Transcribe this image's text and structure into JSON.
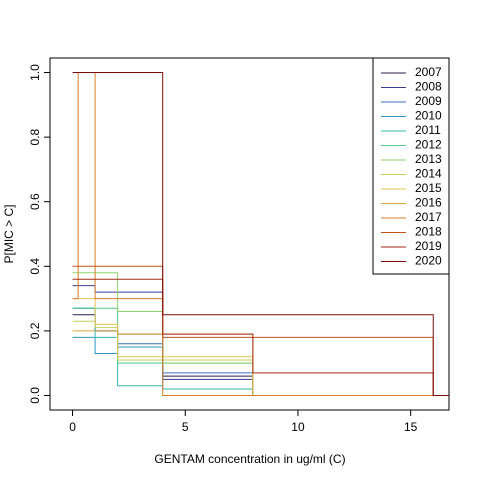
{
  "chart_data": {
    "type": "step",
    "x_label": "GENTAM concentration in ug/ml (C)",
    "y_label": "P[MIC > C]",
    "x": [
      0,
      0.25,
      1,
      2,
      4,
      8,
      16
    ],
    "xlim": [
      -1,
      16.7
    ],
    "xticks": [
      0,
      5,
      10,
      15
    ],
    "ylim": [
      -0.045,
      1.045
    ],
    "yticks": [
      {
        "value": 0,
        "label": "0.0"
      },
      {
        "value": 0.2,
        "label": "0.2"
      },
      {
        "value": 0.4,
        "label": "0.4"
      },
      {
        "value": 0.6,
        "label": "0.6"
      },
      {
        "value": 0.8,
        "label": "0.8"
      },
      {
        "value": 1.0,
        "label": "1.0"
      }
    ],
    "legend": "top-right",
    "series": [
      {
        "name": "2007",
        "color": "#2b1b4d",
        "values": [
          0.25,
          0.25,
          0.2,
          0.19,
          0.06,
          0,
          0
        ]
      },
      {
        "name": "2008",
        "color": "#3d3d99",
        "values": [
          0.34,
          0.34,
          0.32,
          0.32,
          0.05,
          0,
          0
        ]
      },
      {
        "name": "2009",
        "color": "#3d6fc6",
        "values": [
          0.27,
          0.27,
          0.2,
          0.16,
          0.07,
          0,
          0
        ]
      },
      {
        "name": "2010",
        "color": "#2d96c4",
        "values": [
          0.18,
          0.18,
          0.13,
          0.15,
          0.02,
          0,
          0
        ]
      },
      {
        "name": "2011",
        "color": "#33b9ad",
        "values": [
          0.27,
          0.27,
          0.18,
          0.03,
          0.02,
          0,
          0
        ]
      },
      {
        "name": "2012",
        "color": "#52c987",
        "values": [
          0.27,
          0.27,
          0.27,
          0.1,
          0.1,
          0,
          0
        ]
      },
      {
        "name": "2013",
        "color": "#92d26a",
        "values": [
          0.38,
          0.38,
          0.38,
          0.26,
          0.1,
          0,
          0
        ]
      },
      {
        "name": "2014",
        "color": "#c6d05a",
        "values": [
          0.23,
          0.23,
          0.21,
          0.11,
          0.11,
          0,
          0
        ]
      },
      {
        "name": "2015",
        "color": "#e1c44e",
        "values": [
          0.3,
          0.3,
          0.22,
          0.12,
          0.12,
          0,
          0
        ]
      },
      {
        "name": "2016",
        "color": "#d8a63a",
        "values": [
          0.2,
          0.2,
          0.2,
          0.19,
          0.19,
          0,
          0
        ]
      },
      {
        "name": "2017",
        "color": "#d87c28",
        "values": [
          0.3,
          1.0,
          0.3,
          0.3,
          0,
          0,
          0
        ]
      },
      {
        "name": "2018",
        "color": "#c2541c",
        "values": [
          0.4,
          0.4,
          0.4,
          0.4,
          0.18,
          0.18,
          0
        ]
      },
      {
        "name": "2019",
        "color": "#a52a14",
        "values": [
          0.36,
          0.36,
          0.36,
          0.36,
          0.19,
          0.07,
          0
        ]
      },
      {
        "name": "2020",
        "color": "#7a0c0c",
        "values": [
          1.0,
          1.0,
          1.0,
          1.0,
          0.25,
          0.25,
          0
        ]
      }
    ]
  }
}
